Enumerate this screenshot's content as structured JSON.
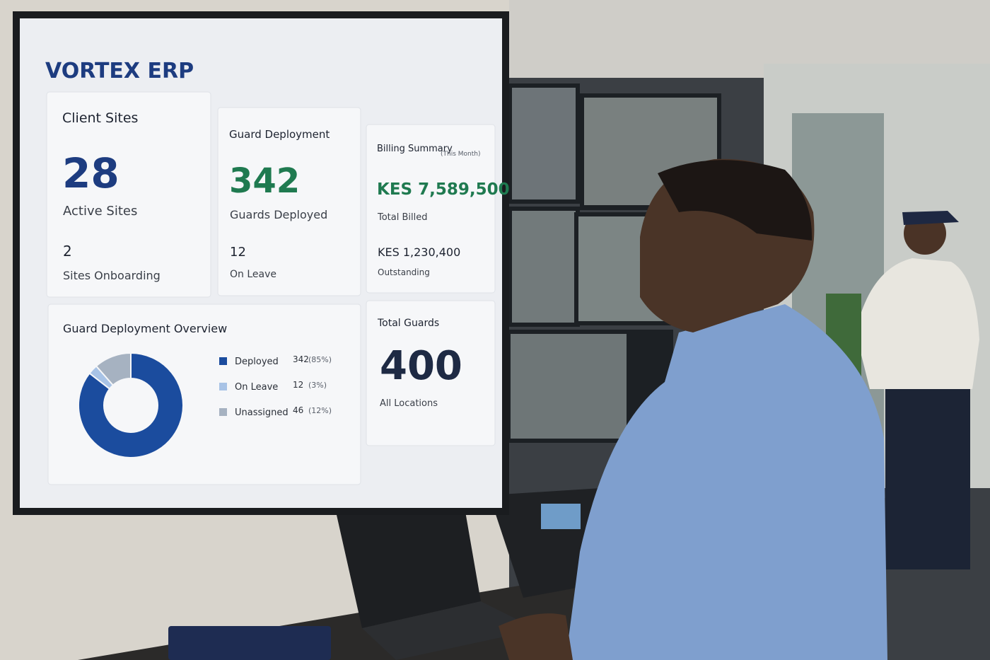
{
  "header": {
    "title": "VORTEX ERP"
  },
  "cards": [
    {
      "title": "Client Sites",
      "value": 28,
      "label": "Active Sites",
      "sub_value": 2,
      "sub_label": "Sites Onboarding"
    },
    {
      "title": "Guard Deployment",
      "value": 342,
      "label": "Guards Deployed",
      "sub_value": 12,
      "sub_label": "On Leave"
    },
    {
      "title": "Billing Summary",
      "note": "(This Month)",
      "value": "KES 7,589,500",
      "label": "Total Billed",
      "sub_value": "KES 1,230,400",
      "sub_label": "Outstanding"
    },
    {
      "title": "Total Guards",
      "value": 400,
      "label": "All Locations"
    }
  ],
  "chart_data": {
    "type": "donut",
    "title": "Guard Deployment Overview",
    "categories": [
      "Deployed",
      "On Leave",
      "Unassigned"
    ],
    "values": [
      342,
      12,
      46
    ],
    "value_labels": [
      "(85%)",
      "(3%)",
      "(12%)"
    ],
    "colors": [
      "#1b4c9e",
      "#a8c3e6",
      "#a6b2c1"
    ]
  }
}
